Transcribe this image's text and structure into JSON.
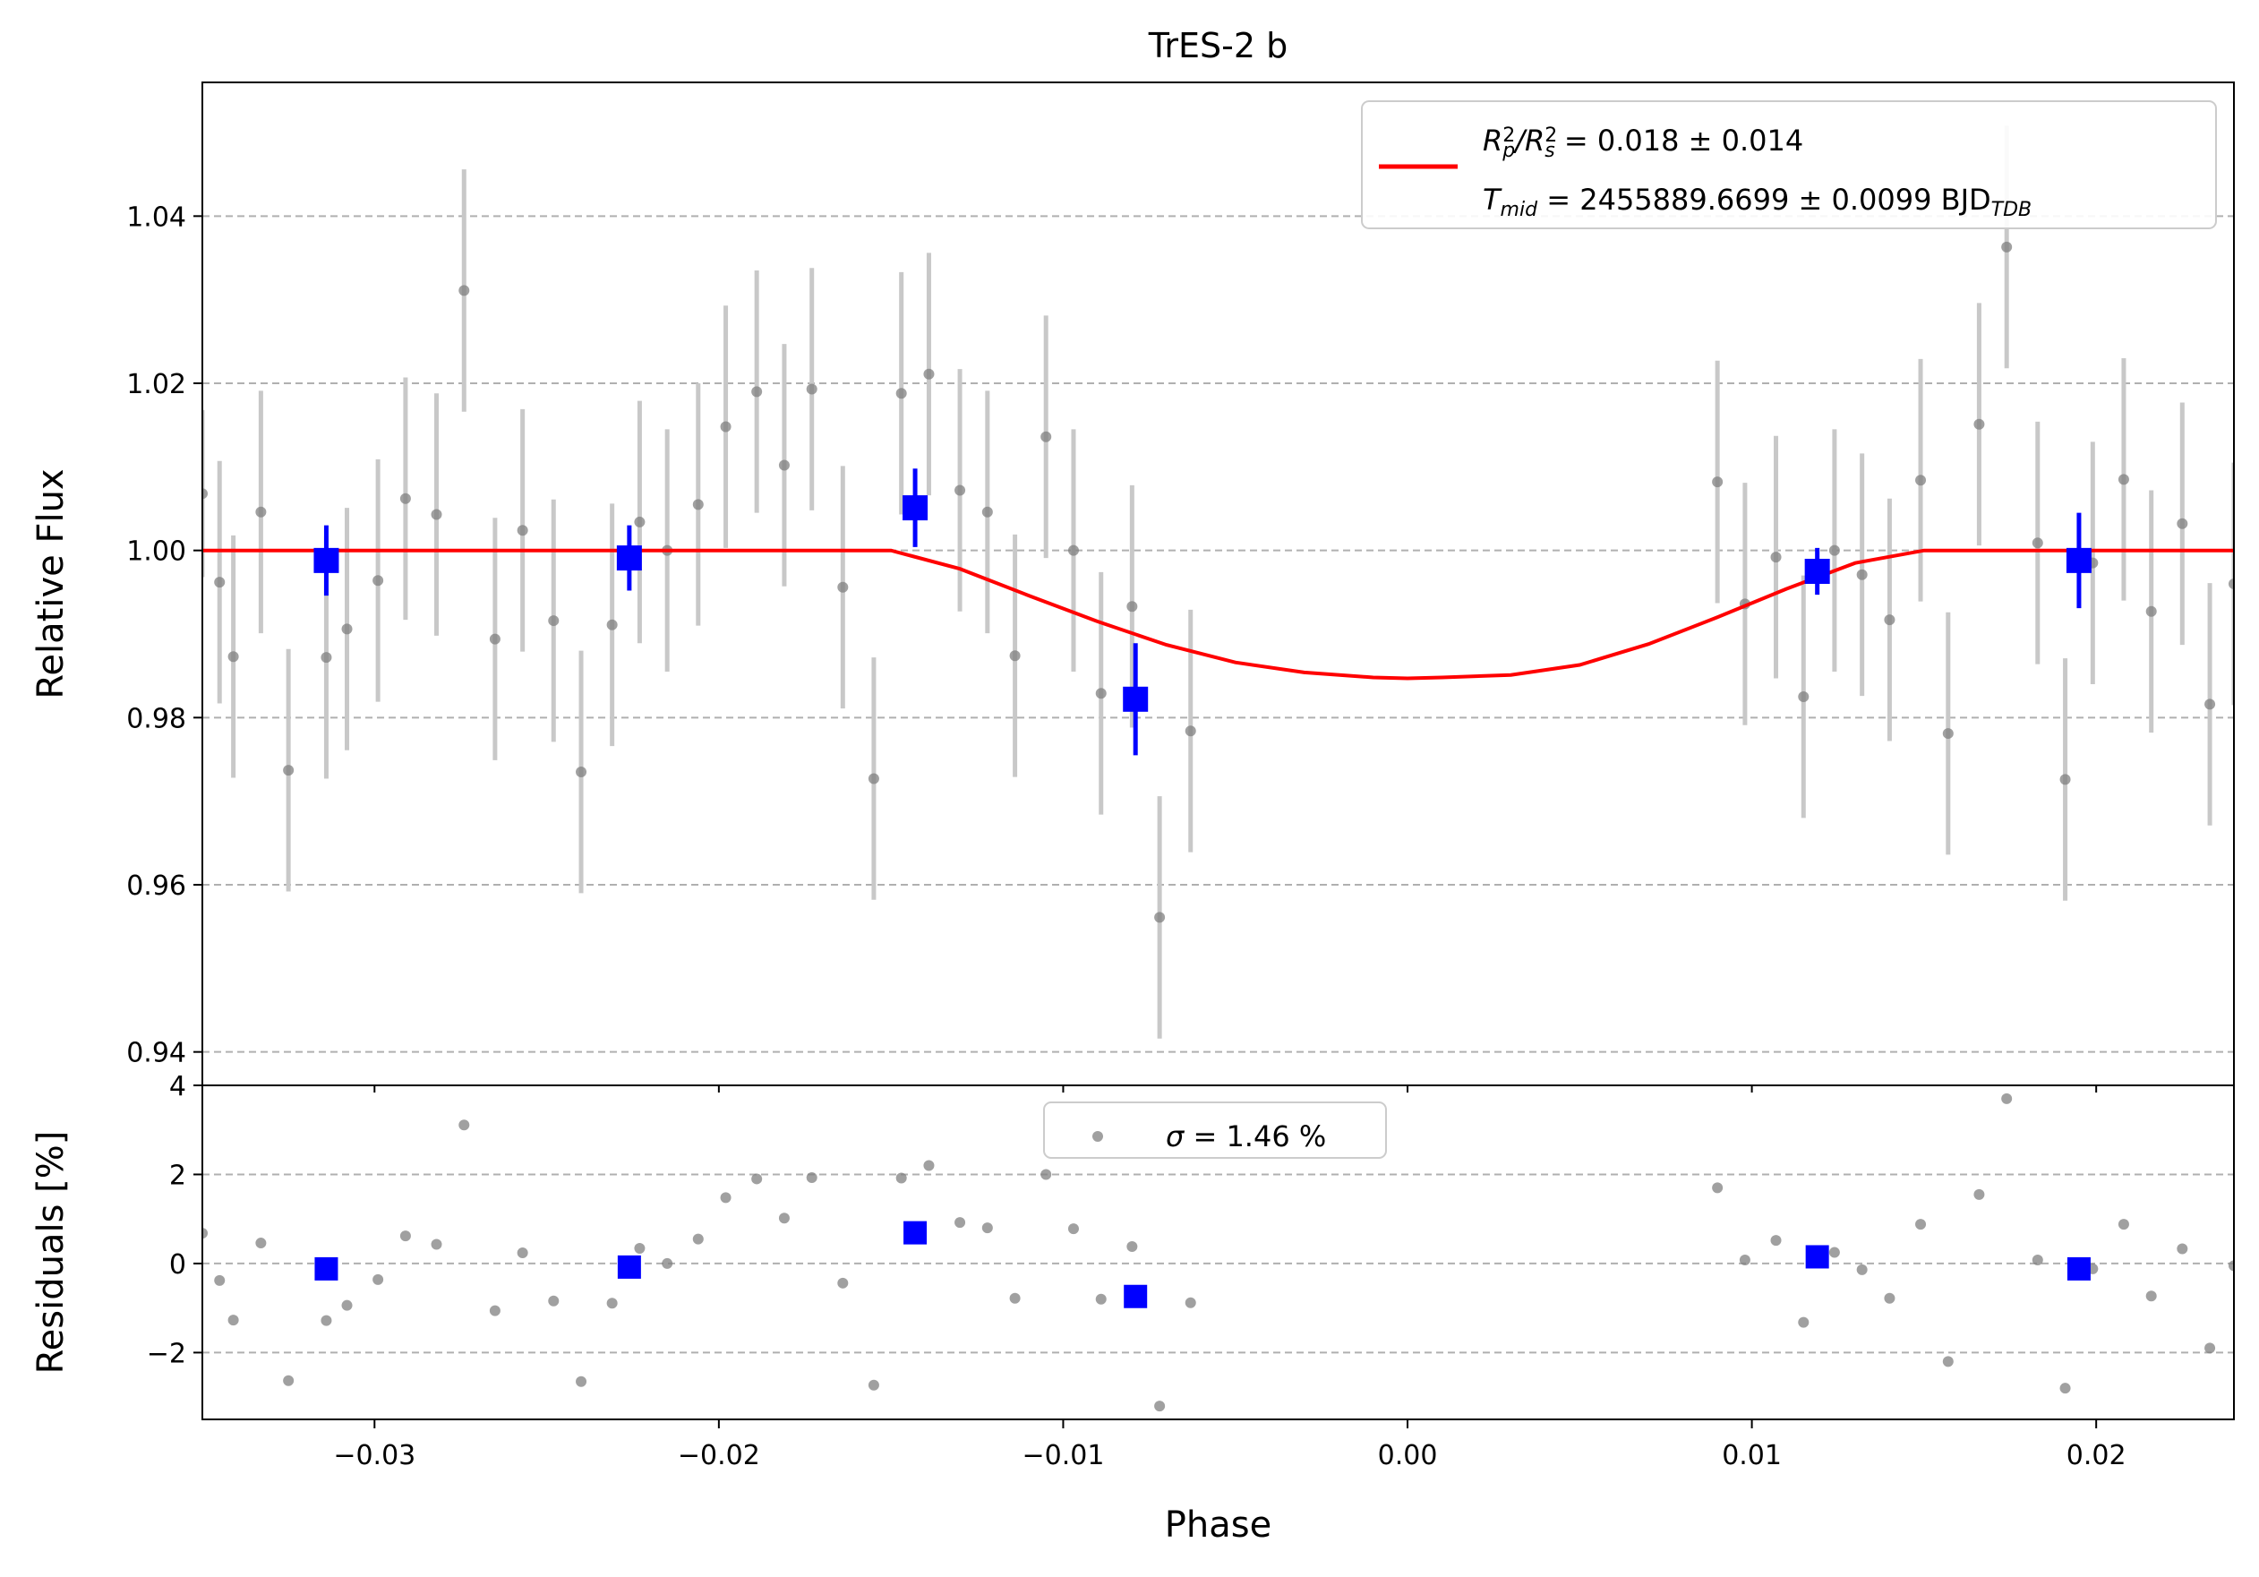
{
  "chart_data": [
    {
      "type": "scatter",
      "panel": "main",
      "title": "TrES-2 b",
      "xlabel": "",
      "ylabel": "Relative Flux",
      "xlim": [
        -0.035,
        0.024
      ],
      "ylim": [
        0.936,
        1.056
      ],
      "x_ticks": [
        -0.03,
        -0.02,
        -0.01,
        0.0,
        0.01,
        0.02
      ],
      "y_ticks": [
        0.94,
        0.96,
        0.98,
        1.0,
        1.02,
        1.04
      ],
      "y_tick_labels": [
        "0.94",
        "0.96",
        "0.98",
        "1.00",
        "1.02",
        "1.04"
      ],
      "grid": "horizontal dashed",
      "legend_position": "top-right",
      "legend": {
        "line1_parts": [
          "R",
          "2",
          "p",
          "/R",
          "2",
          "s",
          " = 0.018 ± 0.014"
        ],
        "line2_parts": [
          "T",
          "mid",
          " = 2455889.6699 ± 0.0099 BJD",
          "TDB"
        ]
      },
      "colors": {
        "raw": "#808080",
        "raw_err": "#c8c8c8",
        "binned": "#0000ff",
        "model": "#ff0000"
      },
      "series": [
        {
          "kind": "raw",
          "points": [
            [
              -0.035,
              1.0068,
              0.01
            ],
            [
              -0.0345,
              0.9962,
              0.0145
            ],
            [
              -0.0341,
              0.9873,
              0.0145
            ],
            [
              -0.0333,
              1.0046,
              0.0145
            ],
            [
              -0.0325,
              0.9737,
              0.0145
            ],
            [
              -0.0314,
              0.9872,
              0.0145
            ],
            [
              -0.0308,
              0.9906,
              0.0145
            ],
            [
              -0.0299,
              0.9964,
              0.0145
            ],
            [
              -0.0291,
              1.0062,
              0.0145
            ],
            [
              -0.0282,
              1.0043,
              0.0145
            ],
            [
              -0.0274,
              1.0311,
              0.0145
            ],
            [
              -0.0265,
              0.9894,
              0.0145
            ],
            [
              -0.0257,
              1.0024,
              0.0145
            ],
            [
              -0.0248,
              0.9916,
              0.0145
            ],
            [
              -0.024,
              0.9735,
              0.0145
            ],
            [
              -0.0231,
              0.9911,
              0.0145
            ],
            [
              -0.0223,
              1.0034,
              0.0145
            ],
            [
              -0.0215,
              1.0,
              0.0145
            ],
            [
              -0.0206,
              1.0055,
              0.0145
            ],
            [
              -0.0198,
              1.0148,
              0.0145
            ],
            [
              -0.0189,
              1.019,
              0.0145
            ],
            [
              -0.0181,
              1.0102,
              0.0145
            ],
            [
              -0.0173,
              1.0193,
              0.0145
            ],
            [
              -0.0164,
              0.9956,
              0.0145
            ],
            [
              -0.0155,
              0.9727,
              0.0145
            ],
            [
              -0.0147,
              1.0188,
              0.0145
            ],
            [
              -0.0139,
              1.0211,
              0.0145
            ],
            [
              -0.013,
              1.0072,
              0.0145
            ],
            [
              -0.0122,
              1.0046,
              0.0145
            ],
            [
              -0.0114,
              0.9874,
              0.0145
            ],
            [
              -0.0105,
              1.0136,
              0.0145
            ],
            [
              -0.0097,
              1.0,
              0.0145
            ],
            [
              -0.0089,
              0.9829,
              0.0145
            ],
            [
              -0.008,
              0.9933,
              0.0145
            ],
            [
              -0.0072,
              0.9561,
              0.0145
            ],
            [
              -0.0063,
              0.9784,
              0.0145
            ],
            [
              0.009,
              1.0082,
              0.0145
            ],
            [
              0.0098,
              0.9936,
              0.0145
            ],
            [
              0.0107,
              0.9992,
              0.0145
            ],
            [
              0.0115,
              0.9825,
              0.0145
            ],
            [
              0.0124,
              1.0,
              0.0145
            ],
            [
              0.0132,
              0.9971,
              0.0145
            ],
            [
              0.014,
              0.9917,
              0.0145
            ],
            [
              0.0149,
              1.0084,
              0.0145
            ],
            [
              0.0157,
              0.9781,
              0.0145
            ],
            [
              0.0166,
              1.0151,
              0.0145
            ],
            [
              0.0174,
              1.0363,
              0.0145
            ],
            [
              0.0183,
              1.0009,
              0.0145
            ],
            [
              0.0191,
              0.9726,
              0.0145
            ],
            [
              0.0199,
              0.9985,
              0.0145
            ],
            [
              0.0208,
              1.0085,
              0.0145
            ],
            [
              0.0216,
              0.9927,
              0.0145
            ],
            [
              0.0225,
              1.0032,
              0.0145
            ],
            [
              0.0233,
              0.9816,
              0.0145
            ],
            [
              0.024,
              0.996,
              0.0145
            ]
          ]
        },
        {
          "kind": "binned",
          "points": [
            [
              -0.0314,
              0.9988,
              0.0042
            ],
            [
              -0.0226,
              0.9991,
              0.0039
            ],
            [
              -0.0143,
              1.0051,
              0.0047
            ],
            [
              -0.0079,
              0.9822,
              0.0067
            ],
            [
              0.0119,
              0.9975,
              0.0028
            ],
            [
              0.0195,
              0.9988,
              0.0057
            ]
          ]
        },
        {
          "kind": "model",
          "name": "",
          "x": [
            -0.035,
            -0.015,
            -0.013,
            -0.011,
            -0.009,
            -0.007,
            -0.005,
            -0.003,
            -0.001,
            0.0,
            0.001,
            0.003,
            0.005,
            0.007,
            0.009,
            0.011,
            0.013,
            0.015,
            0.024
          ],
          "y": [
            1.0,
            1.0,
            0.9978,
            0.9946,
            0.9915,
            0.9887,
            0.9866,
            0.9854,
            0.9848,
            0.9847,
            0.9848,
            0.9851,
            0.9863,
            0.9888,
            0.992,
            0.9954,
            0.9985,
            1.0,
            1.0
          ]
        }
      ]
    },
    {
      "type": "scatter",
      "panel": "residuals",
      "xlabel": "Phase",
      "ylabel": "Residuals [%]",
      "xlim": [
        -0.035,
        0.024
      ],
      "ylim": [
        -3.5,
        4.0
      ],
      "x_ticks": [
        -0.03,
        -0.02,
        -0.01,
        0.0,
        0.01,
        0.02
      ],
      "x_tick_labels": [
        "−0.03",
        "−0.02",
        "−0.01",
        "0.00",
        "0.01",
        "0.02"
      ],
      "y_ticks": [
        -2,
        0,
        2,
        4
      ],
      "y_tick_labels": [
        "−2",
        "0",
        "2",
        "4"
      ],
      "grid": "horizontal dashed",
      "legend_position": "top-center",
      "legend": {
        "label_parts": [
          "σ",
          " = 1.46 %"
        ]
      },
      "series": [
        {
          "kind": "raw",
          "points": [
            [
              -0.035,
              0.68
            ],
            [
              -0.0345,
              -0.38
            ],
            [
              -0.0341,
              -1.27
            ],
            [
              -0.0333,
              0.46
            ],
            [
              -0.0325,
              -2.63
            ],
            [
              -0.0314,
              -1.28
            ],
            [
              -0.0308,
              -0.94
            ],
            [
              -0.0299,
              -0.36
            ],
            [
              -0.0291,
              0.62
            ],
            [
              -0.0282,
              0.43
            ],
            [
              -0.0274,
              3.11
            ],
            [
              -0.0265,
              -1.06
            ],
            [
              -0.0257,
              0.24
            ],
            [
              -0.0248,
              -0.84
            ],
            [
              -0.024,
              -2.65
            ],
            [
              -0.0231,
              -0.89
            ],
            [
              -0.0223,
              0.34
            ],
            [
              -0.0215,
              0.0
            ],
            [
              -0.0206,
              0.55
            ],
            [
              -0.0198,
              1.48
            ],
            [
              -0.0189,
              1.9
            ],
            [
              -0.0181,
              1.02
            ],
            [
              -0.0173,
              1.93
            ],
            [
              -0.0164,
              -0.44
            ],
            [
              -0.0155,
              -2.73
            ],
            [
              -0.0147,
              1.92
            ],
            [
              -0.0139,
              2.2
            ],
            [
              -0.013,
              0.92
            ],
            [
              -0.0122,
              0.8
            ],
            [
              -0.0114,
              -0.78
            ],
            [
              -0.0105,
              2.0
            ],
            [
              -0.0097,
              0.78
            ],
            [
              -0.0089,
              -0.8
            ],
            [
              -0.008,
              0.38
            ],
            [
              -0.0072,
              -3.2
            ],
            [
              -0.0063,
              -0.88
            ],
            [
              0.009,
              1.7
            ],
            [
              0.0098,
              0.08
            ],
            [
              0.0107,
              0.52
            ],
            [
              0.0115,
              -1.32
            ],
            [
              0.0124,
              0.25
            ],
            [
              0.0132,
              -0.14
            ],
            [
              0.014,
              -0.78
            ],
            [
              0.0149,
              0.88
            ],
            [
              0.0157,
              -2.2
            ],
            [
              0.0166,
              1.55
            ],
            [
              0.0174,
              3.7
            ],
            [
              0.0183,
              0.08
            ],
            [
              0.0191,
              -2.8
            ],
            [
              0.0199,
              -0.12
            ],
            [
              0.0208,
              0.88
            ],
            [
              0.0216,
              -0.73
            ],
            [
              0.0225,
              0.33
            ],
            [
              0.0233,
              -1.9
            ],
            [
              0.024,
              -0.05
            ]
          ]
        },
        {
          "kind": "binned",
          "points": [
            [
              -0.0314,
              -0.12
            ],
            [
              -0.0226,
              -0.08
            ],
            [
              -0.0143,
              0.69
            ],
            [
              -0.0079,
              -0.74
            ],
            [
              0.0119,
              0.15
            ],
            [
              0.0195,
              -0.12
            ]
          ]
        }
      ]
    }
  ]
}
